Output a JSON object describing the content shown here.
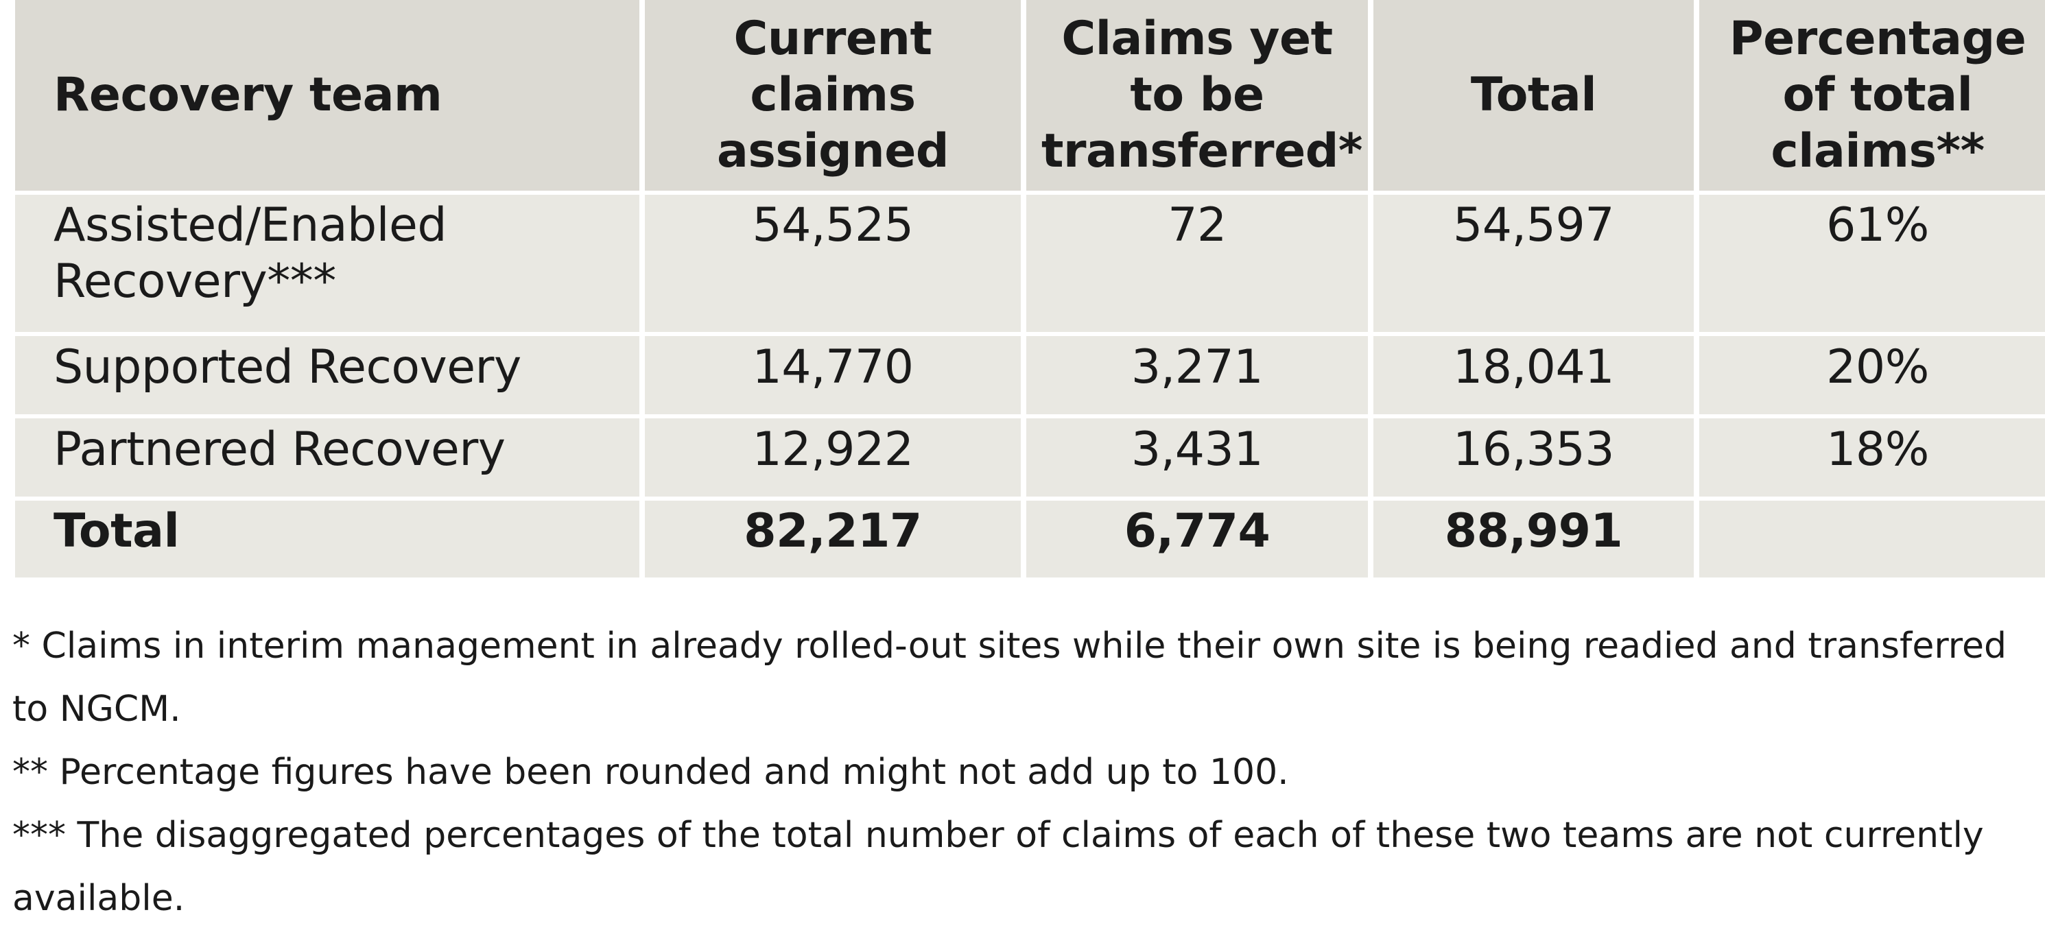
{
  "table": {
    "headers": [
      "Recovery team",
      "Current claims assigned",
      "Claims yet to be transferred*",
      "Total",
      "Percentage of total claims**"
    ],
    "rows": [
      [
        "Assisted/Enabled Recovery***",
        "54,525",
        "72",
        "54,597",
        "61%"
      ],
      [
        "Supported Recovery",
        "14,770",
        "3,271",
        "18,041",
        "20%"
      ],
      [
        "Partnered Recovery",
        "12,922",
        "3,431",
        "16,353",
        "18%"
      ]
    ],
    "total_row": [
      "Total",
      "82,217",
      "6,774",
      "88,991",
      ""
    ]
  },
  "footnotes": [
    "* Claims in interim management in already rolled-out sites while their own site is being readied and transferred to NGCM.",
    "** Percentage figures have been rounded and might not add up to 100.",
    "*** The disaggregated percentages of the total number of claims of each of these two teams are not currently available."
  ],
  "colors": {
    "header_bg": "#dcdad3",
    "cell_bg": "#e9e8e2",
    "text": "#1a1a1a"
  }
}
